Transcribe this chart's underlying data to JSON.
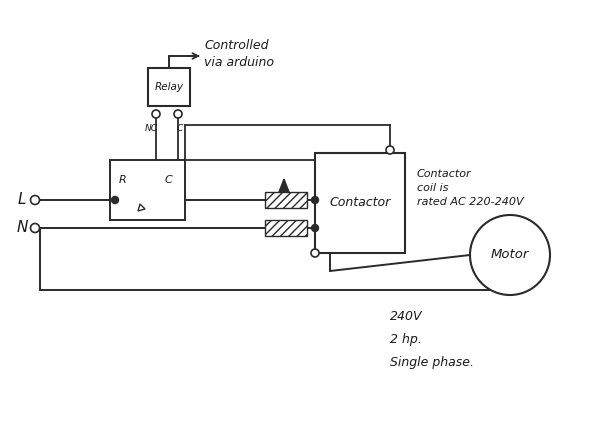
{
  "background_color": "#FFFFFF",
  "line_color": "#2a2a2a",
  "text_color": "#1a1a1a",
  "annotations": {
    "controlled": "Controlled\nvia arduino",
    "relay_label": "Relay",
    "nc_label": "NC",
    "c_label": "C",
    "r_label": "R",
    "c2_label": "C",
    "contactor_label": "Contactor",
    "contactor_coil": "Contactor\ncoil is\nrated AC 220-240V",
    "motor_label": "Motor",
    "L_label": "L",
    "N_label": "N",
    "motor_specs": "240V\n2 hp.\nSingle phase."
  },
  "figsize": [
    6.14,
    4.21
  ],
  "dpi": 100
}
